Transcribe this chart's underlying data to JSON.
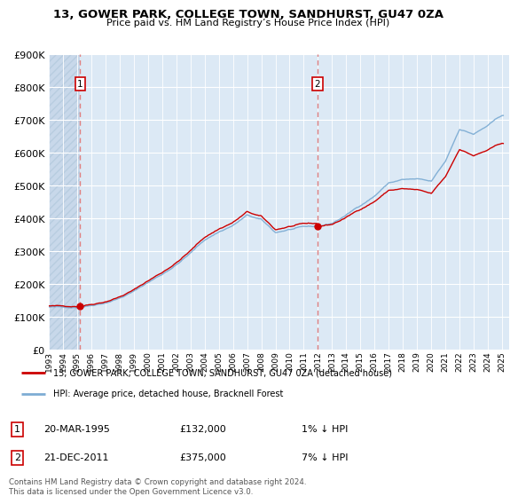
{
  "title_line1": "13, GOWER PARK, COLLEGE TOWN, SANDHURST, GU47 0ZA",
  "title_line2": "Price paid vs. HM Land Registry’s House Price Index (HPI)",
  "plot_bg_color": "#dce9f5",
  "hatch_bg_color": "#c8d8ea",
  "grid_color": "#ffffff",
  "sale1_year": 1995.22,
  "sale1_price": 132000,
  "sale2_year": 2011.97,
  "sale2_price": 375000,
  "legend_line1": "13, GOWER PARK, COLLEGE TOWN, SANDHURST, GU47 0ZA (detached house)",
  "legend_line2": "HPI: Average price, detached house, Bracknell Forest",
  "ann1_date": "20-MAR-1995",
  "ann1_price": "£132,000",
  "ann1_hpi": "1% ↓ HPI",
  "ann2_date": "21-DEC-2011",
  "ann2_price": "£375,000",
  "ann2_hpi": "7% ↓ HPI",
  "footnote": "Contains HM Land Registry data © Crown copyright and database right 2024.\nThis data is licensed under the Open Government Licence v3.0.",
  "ylim": [
    0,
    900000
  ],
  "yticks": [
    0,
    100000,
    200000,
    300000,
    400000,
    500000,
    600000,
    700000,
    800000,
    900000
  ],
  "xlim_left": 1993.0,
  "xlim_right": 2025.5,
  "sale_color": "#cc0000",
  "hpi_color": "#7eadd4",
  "dashed_color": "#e08080",
  "box_edge_color": "#cc0000"
}
